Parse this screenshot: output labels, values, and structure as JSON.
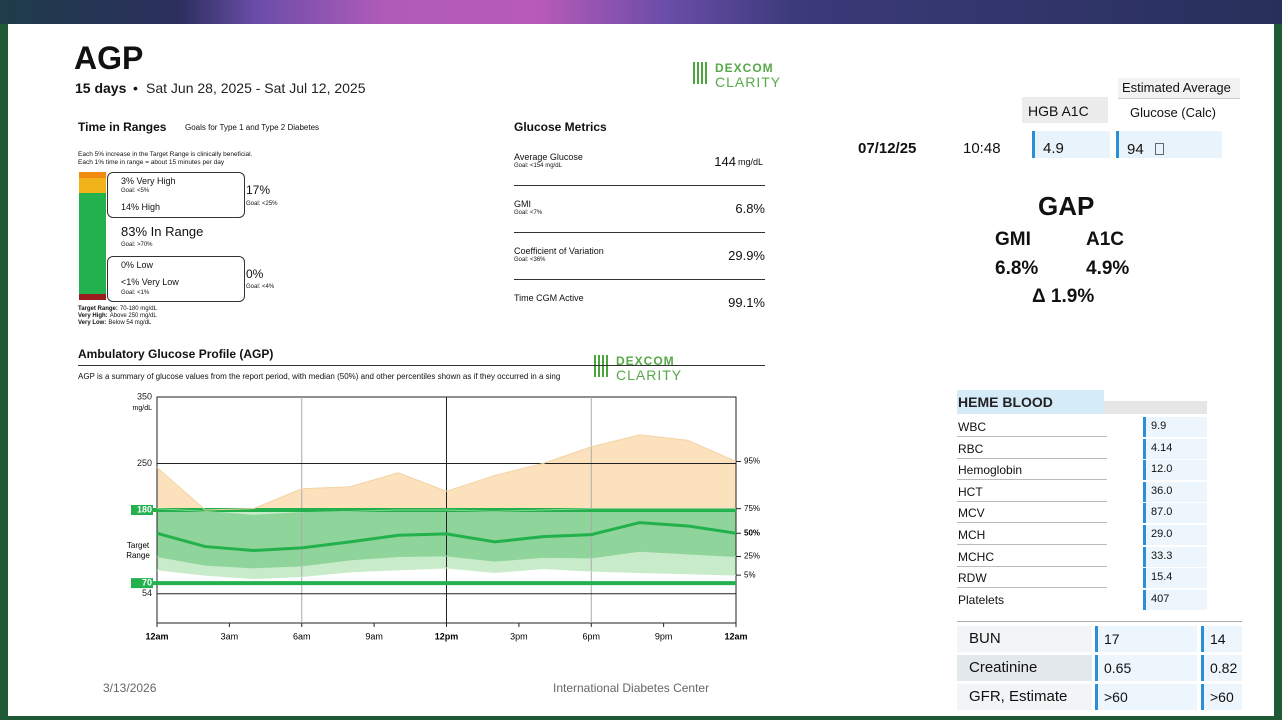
{
  "header": {
    "title": "AGP",
    "days": "15 days",
    "separator": "•",
    "date_range": "Sat Jun 28, 2025 - Sat Jul 12, 2025"
  },
  "logo": {
    "brand": "DEXCOM",
    "product": "CLARITY"
  },
  "time_in_ranges": {
    "title": "Time in Ranges",
    "goals_note": "Goals for Type 1 and Type 2 Diabetes",
    "notes": [
      "Each 5% increase in the Target Range is clinically beneficial.",
      "Each 1% time in range = about 15 minutes per day"
    ],
    "high_box": {
      "very_high": "3% Very High",
      "very_high_goal": "Goal: <5%",
      "high": "14% High",
      "total": "17%",
      "total_goal": "Goal: <25%"
    },
    "in_range": {
      "label": "83% In Range",
      "goal": "Goal: >70%"
    },
    "low_box": {
      "low": "0% Low",
      "very_low": "<1% Very Low",
      "very_low_goal": "Goal: <1%",
      "total": "0%",
      "total_goal": "Goal: <4%"
    },
    "definitions": [
      {
        "term": "Target Range:",
        "text": "70-180 mg/dL"
      },
      {
        "term": "Very High:",
        "text": "Above 250 mg/dL"
      },
      {
        "term": "Very Low:",
        "text": "Below 54 mg/dL"
      }
    ]
  },
  "glucose_metrics": {
    "title": "Glucose Metrics",
    "rows": [
      {
        "label": "Average Glucose",
        "goal": "Goal: <154 mg/dL",
        "value": "144",
        "unit": "mg/dL"
      },
      {
        "label": "GMI",
        "goal": "Goal: <7%",
        "value": "6.8%"
      },
      {
        "label": "Coefficient of Variation",
        "goal": "Goal: <36%",
        "value": "29.9%"
      },
      {
        "label": "Time CGM Active",
        "value": "99.1%"
      }
    ]
  },
  "chart_data": {
    "type": "agp",
    "title": "Ambulatory Glucose Profile (AGP)",
    "subtitle": "AGP is a summary of glucose values from the report period, with median (50%) and other percentiles shown as if they occurred in a sing",
    "y_unit": "mg/dL",
    "target_label": "Target Range",
    "x": [
      0,
      2,
      4,
      6,
      8,
      10,
      12,
      14,
      16,
      18,
      20,
      22,
      24
    ],
    "xlim": [
      0,
      24
    ],
    "xticks": [
      {
        "value": 0,
        "label": "12am"
      },
      {
        "value": 3,
        "label": "3am"
      },
      {
        "value": 6,
        "label": "6am"
      },
      {
        "value": 9,
        "label": "9am"
      },
      {
        "value": 12,
        "label": "12pm"
      },
      {
        "value": 15,
        "label": "3pm"
      },
      {
        "value": 18,
        "label": "6pm"
      },
      {
        "value": 21,
        "label": "9pm"
      },
      {
        "value": 24,
        "label": "12am"
      }
    ],
    "ylim": [
      10,
      350
    ],
    "yticks": [
      54,
      70,
      180,
      250,
      350
    ],
    "target_range": [
      70,
      180
    ],
    "series": [
      {
        "name": "95%",
        "color": "#f3d3a4",
        "values": [
          244,
          180,
          182,
          212,
          215,
          236,
          208,
          232,
          250,
          275,
          293,
          285,
          253
        ]
      },
      {
        "name": "75%",
        "color": "#8fd49a",
        "values": [
          182,
          178,
          172,
          176,
          178,
          180,
          180,
          178,
          180,
          182,
          182,
          182,
          182
        ]
      },
      {
        "name": "50%",
        "color": "#22b14c",
        "values": [
          145,
          125,
          119,
          123,
          132,
          142,
          144,
          132,
          140,
          143,
          161,
          156,
          145
        ]
      },
      {
        "name": "25%",
        "color": "#8fd49a",
        "values": [
          110,
          97,
          93,
          96,
          105,
          110,
          111,
          103,
          109,
          108,
          118,
          114,
          110
        ]
      },
      {
        "name": "5%",
        "color": "#c8ebc9",
        "values": [
          90,
          82,
          77,
          80,
          87,
          90,
          93,
          86,
          92,
          88,
          86,
          84,
          82
        ]
      }
    ]
  },
  "a1c": {
    "hgb_header": "HGB A1C",
    "eag_header_1": "Estimated Average",
    "eag_header_2": "Glucose (Calc)",
    "date": "07/12/25",
    "time": "10:48",
    "hgb": "4.9",
    "eag": "94"
  },
  "gap": {
    "title": "GAP",
    "gmi_label": "GMI",
    "a1c_label": "A1C",
    "gmi": "6.8%",
    "a1c": "4.9%",
    "delta": "Δ 1.9%"
  },
  "heme_blood": {
    "title": "HEME BLOOD",
    "rows": [
      [
        "WBC",
        "9.9"
      ],
      [
        "RBC",
        "4.14"
      ],
      [
        "Hemoglobin",
        "12.0"
      ],
      [
        "HCT",
        "36.0"
      ],
      [
        "MCV",
        "87.0"
      ],
      [
        "MCH",
        "29.0"
      ],
      [
        "MCHC",
        "33.3"
      ],
      [
        "RDW",
        "15.4"
      ],
      [
        "Platelets",
        "407"
      ]
    ]
  },
  "chemistry": {
    "rows": [
      [
        "BUN",
        "17",
        "14"
      ],
      [
        "Creatinine",
        "0.65",
        "0.82"
      ],
      [
        "GFR, Estimate",
        ">60",
        ">60"
      ]
    ]
  },
  "footer": {
    "date": "3/13/2026",
    "organization": "International Diabetes Center"
  }
}
